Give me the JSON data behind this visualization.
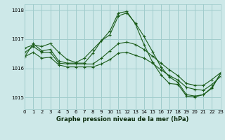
{
  "title": "Graphe pression niveau de la mer (hPa)",
  "background_color": "#cde8e8",
  "grid_color": "#a0cccc",
  "line_color": "#1a5c1a",
  "xlim": [
    0,
    23
  ],
  "ylim": [
    1014.6,
    1018.2
  ],
  "yticks": [
    1015,
    1016,
    1017,
    1018
  ],
  "xticks": [
    0,
    1,
    2,
    3,
    4,
    5,
    6,
    7,
    8,
    9,
    10,
    11,
    12,
    13,
    14,
    15,
    16,
    17,
    18,
    19,
    20,
    21,
    22,
    23
  ],
  "series": [
    [
      1016.7,
      1016.8,
      1016.75,
      1016.85,
      1016.55,
      1016.3,
      1016.2,
      1016.35,
      1016.65,
      1016.95,
      1017.15,
      1017.8,
      1017.9,
      1017.55,
      1017.1,
      1016.58,
      1016.05,
      1015.7,
      1015.52,
      1015.1,
      1015.05,
      1015.1,
      1015.32,
      1015.82
    ],
    [
      1016.4,
      1016.85,
      1016.6,
      1016.65,
      1016.25,
      1016.18,
      1016.18,
      1016.18,
      1016.52,
      1016.95,
      1017.28,
      1017.9,
      1017.95,
      1017.52,
      1016.82,
      1016.22,
      1015.78,
      1015.48,
      1015.45,
      1015.05,
      1015.02,
      1015.1,
      1015.35,
      1015.82
    ],
    [
      1016.55,
      1016.75,
      1016.55,
      1016.55,
      1016.18,
      1016.15,
      1016.15,
      1016.15,
      1016.15,
      1016.35,
      1016.6,
      1016.85,
      1016.9,
      1016.82,
      1016.65,
      1016.42,
      1016.18,
      1015.95,
      1015.75,
      1015.48,
      1015.42,
      1015.42,
      1015.62,
      1015.85
    ],
    [
      1016.4,
      1016.55,
      1016.35,
      1016.38,
      1016.12,
      1016.05,
      1016.05,
      1016.05,
      1016.05,
      1016.15,
      1016.3,
      1016.52,
      1016.55,
      1016.45,
      1016.35,
      1016.18,
      1015.95,
      1015.75,
      1015.6,
      1015.35,
      1015.28,
      1015.25,
      1015.45,
      1015.72
    ]
  ]
}
